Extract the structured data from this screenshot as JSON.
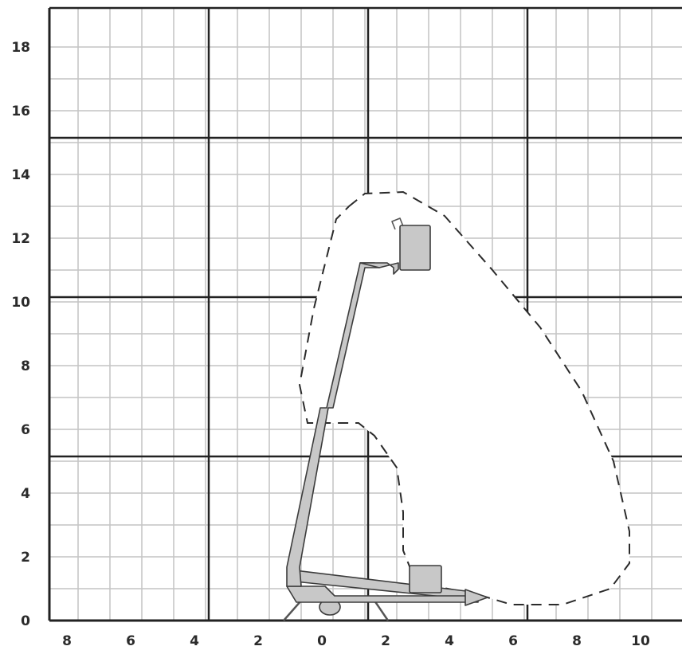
{
  "chart_data": {
    "type": "diagram",
    "title": "",
    "xlabel": "",
    "ylabel": "",
    "x_ticks": [
      "8",
      "6",
      "4",
      "2",
      "0",
      "2",
      "4",
      "6",
      "8",
      "10"
    ],
    "y_ticks": [
      "0",
      "2",
      "4",
      "6",
      "8",
      "10",
      "12",
      "14",
      "16",
      "18"
    ],
    "xlim": [
      -9,
      10.5
    ],
    "ylim": [
      0,
      18.5
    ],
    "grid": true,
    "envelope_points": [
      [
        0.5,
        13.0
      ],
      [
        1.0,
        13.4
      ],
      [
        2.2,
        13.45
      ],
      [
        3.5,
        12.7
      ],
      [
        5.0,
        11.0
      ],
      [
        6.5,
        9.2
      ],
      [
        7.8,
        7.2
      ],
      [
        8.8,
        5.0
      ],
      [
        9.3,
        2.8
      ],
      [
        9.3,
        1.8
      ],
      [
        8.7,
        1.0
      ],
      [
        7.2,
        0.5
      ],
      [
        5.6,
        0.5
      ],
      [
        4.6,
        0.8
      ],
      [
        2.6,
        1.2
      ],
      [
        2.2,
        2.2
      ],
      [
        2.2,
        3.4
      ],
      [
        2.0,
        4.8
      ],
      [
        1.3,
        5.8
      ],
      [
        0.8,
        6.2
      ],
      [
        0.0,
        6.2
      ],
      [
        -0.8,
        6.2
      ],
      [
        -1.05,
        7.4
      ],
      [
        -0.6,
        9.8
      ],
      [
        0.1,
        12.6
      ],
      [
        0.5,
        13.0
      ]
    ]
  }
}
